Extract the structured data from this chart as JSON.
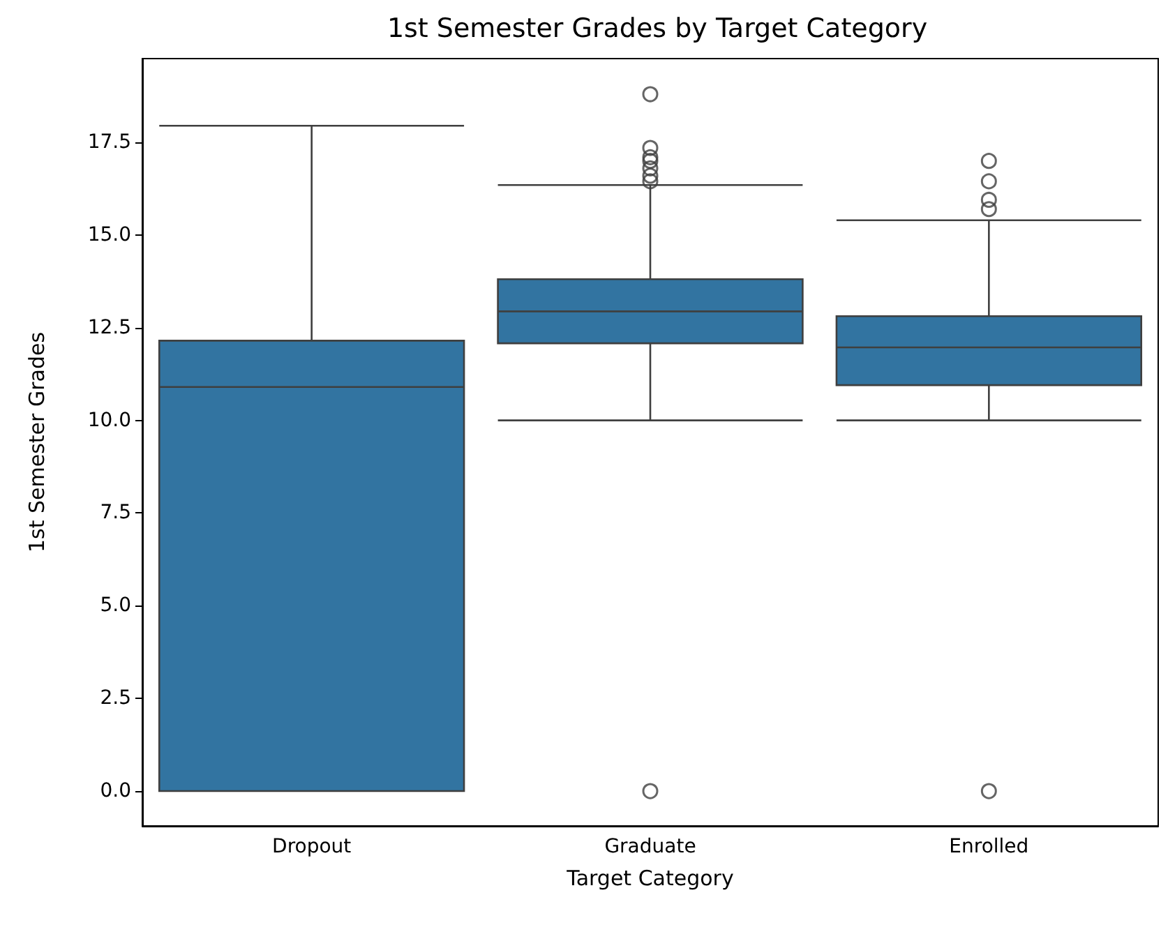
{
  "chart_data": {
    "type": "box",
    "title": "1st Semester Grades by Target Category",
    "xlabel": "Target Category",
    "ylabel": "1st Semester Grades",
    "categories": [
      "Dropout",
      "Graduate",
      "Enrolled"
    ],
    "series": [
      {
        "color": "#3274a1",
        "boxes": [
          {
            "low": 0,
            "q1": 0,
            "median": 10.9,
            "q3": 12.15,
            "high": 17.95
          },
          {
            "low": 10,
            "q1": 12.08,
            "median": 12.94,
            "q3": 13.81,
            "high": 16.35,
            "outliers": [
              18.8,
              17.35,
              17.1,
              17.0,
              16.8,
              16.6,
              16.45,
              0
            ]
          },
          {
            "low": 10,
            "q1": 10.95,
            "median": 11.97,
            "q3": 12.81,
            "high": 15.4,
            "outliers": [
              17.0,
              16.45,
              15.95,
              15.7,
              0
            ]
          }
        ]
      }
    ],
    "ylim": [
      -0.94,
      19.76
    ],
    "yticks": [
      {
        "value": 0,
        "label": "0.0"
      },
      {
        "value": 2.5,
        "label": "2.5"
      },
      {
        "value": 5,
        "label": "5.0"
      },
      {
        "value": 7.5,
        "label": "7.5"
      },
      {
        "value": 10,
        "label": "10.0"
      },
      {
        "value": 12.5,
        "label": "12.5"
      },
      {
        "value": 15,
        "label": "15.0"
      },
      {
        "value": 17.5,
        "label": "17.5"
      }
    ]
  }
}
